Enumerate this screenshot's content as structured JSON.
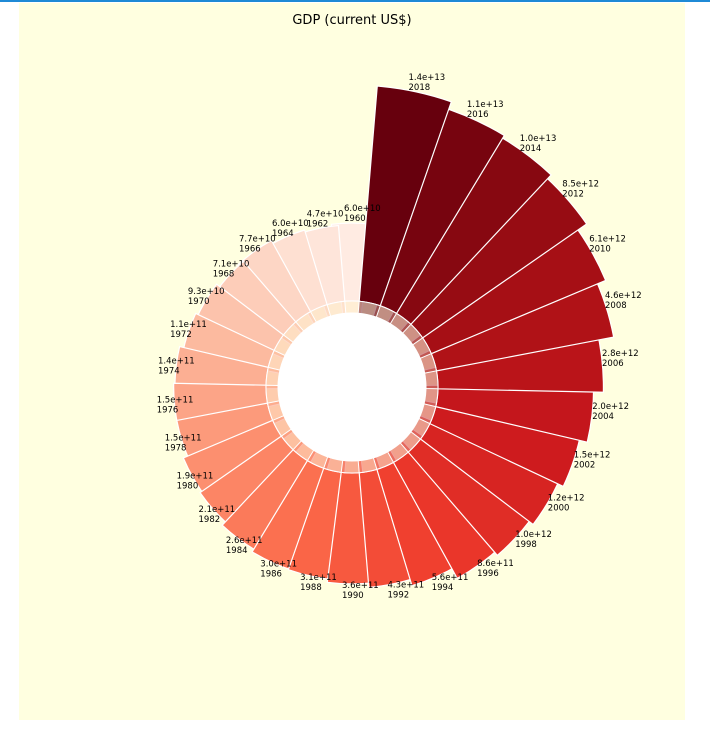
{
  "chart_data": {
    "type": "bar",
    "subtype": "circular",
    "title": "GDP (current US$)",
    "colormap": "Reds",
    "background": "#ffffe0",
    "categories": [
      "1960",
      "1962",
      "1964",
      "1966",
      "1968",
      "1970",
      "1972",
      "1974",
      "1976",
      "1978",
      "1980",
      "1982",
      "1984",
      "1986",
      "1988",
      "1990",
      "1992",
      "1994",
      "1996",
      "1998",
      "2000",
      "2002",
      "2004",
      "2006",
      "2008",
      "2010",
      "2012",
      "2014",
      "2016",
      "2018"
    ],
    "values": [
      60000000000.0,
      47000000000.0,
      60000000000.0,
      77000000000.0,
      71000000000.0,
      93000000000.0,
      110000000000.0,
      140000000000.0,
      150000000000.0,
      150000000000.0,
      190000000000.0,
      210000000000.0,
      260000000000.0,
      300000000000.0,
      310000000000.0,
      360000000000.0,
      430000000000.0,
      560000000000.0,
      860000000000.0,
      1000000000000.0,
      1200000000000.0,
      1500000000000.0,
      2000000000000.0,
      2800000000000.0,
      4600000000000.0,
      6100000000000.0,
      8500000000000.0,
      10000000000000.0,
      11000000000000.0,
      14000000000000.0
    ],
    "value_labels": [
      "6.0e+10",
      "4.7e+10",
      "6.0e+10",
      "7.7e+10",
      "7.1e+10",
      "9.3e+10",
      "1.1e+11",
      "1.4e+11",
      "1.5e+11",
      "1.5e+11",
      "1.9e+11",
      "2.1e+11",
      "2.6e+11",
      "3.0e+11",
      "3.1e+11",
      "3.6e+11",
      "4.3e+11",
      "5.6e+11",
      "8.6e+11",
      "1.0e+12",
      "1.2e+12",
      "1.5e+12",
      "2.0e+12",
      "2.8e+12",
      "4.6e+12",
      "6.1e+12",
      "8.5e+12",
      "1.0e+13",
      "1.1e+13",
      "1.4e+13"
    ]
  }
}
